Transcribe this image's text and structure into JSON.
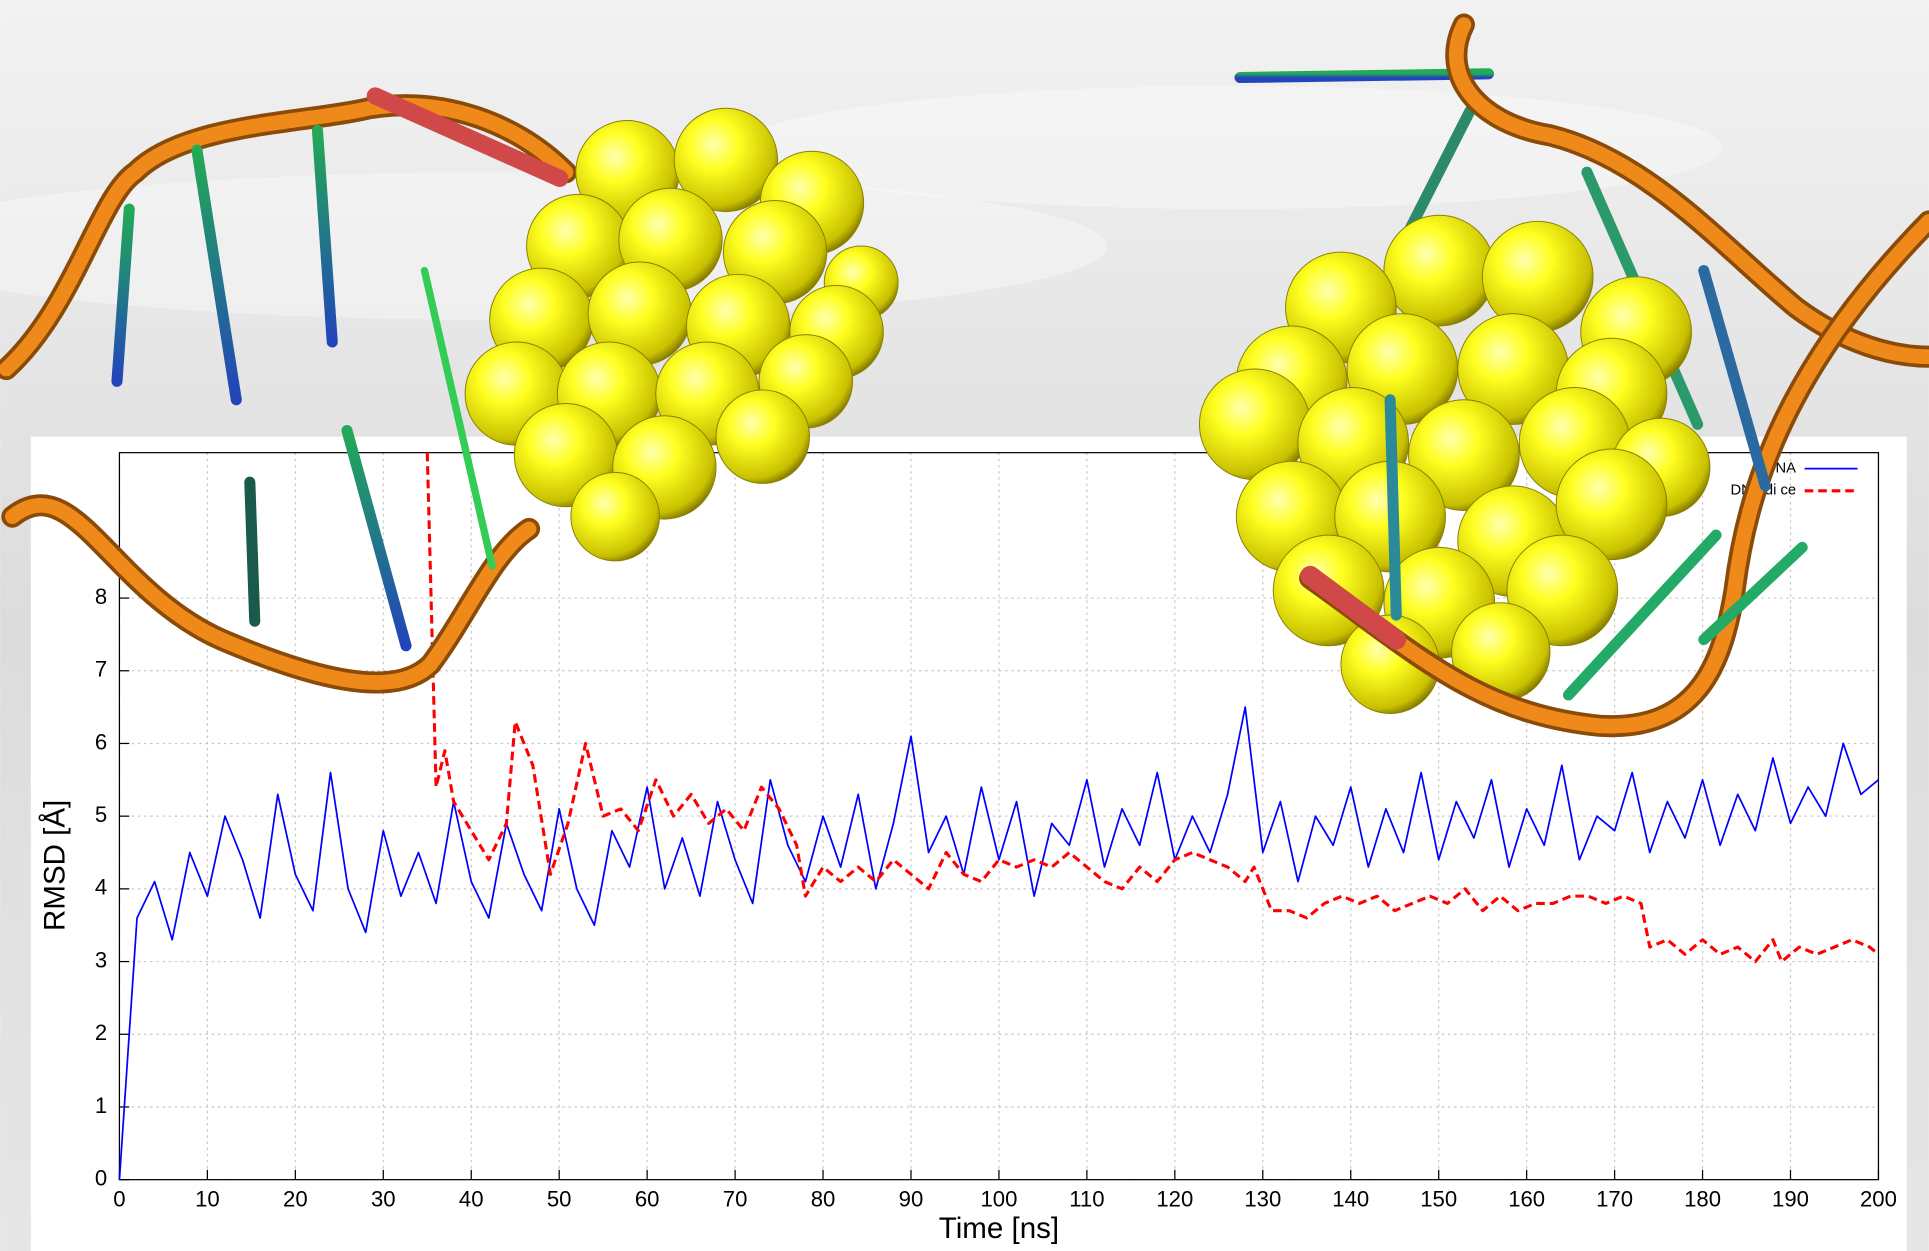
{
  "chart_data": {
    "type": "line",
    "x_label": "Time [ns]",
    "y_label": "RMSD [Å]",
    "xlim": [
      0,
      200
    ],
    "ylim": [
      0,
      10
    ],
    "xticks": [
      0,
      10,
      20,
      30,
      40,
      50,
      60,
      70,
      80,
      90,
      100,
      110,
      120,
      130,
      140,
      150,
      160,
      170,
      180,
      190,
      200
    ],
    "yticks": [
      0,
      1,
      2,
      3,
      4,
      5,
      6,
      7,
      8
    ],
    "grid": true,
    "legend": "upper right",
    "series": [
      {
        "name": "NA",
        "color": "#0000ff",
        "dash": false,
        "x": [
          0,
          2,
          4,
          6,
          8,
          10,
          12,
          14,
          16,
          18,
          20,
          22,
          24,
          26,
          28,
          30,
          32,
          34,
          36,
          38,
          40,
          42,
          44,
          46,
          48,
          50,
          52,
          54,
          56,
          58,
          60,
          62,
          64,
          66,
          68,
          70,
          72,
          74,
          76,
          78,
          80,
          82,
          84,
          86,
          88,
          90,
          92,
          94,
          96,
          98,
          100,
          102,
          104,
          106,
          108,
          110,
          112,
          114,
          116,
          118,
          120,
          122,
          124,
          126,
          128,
          130,
          132,
          134,
          136,
          138,
          140,
          142,
          144,
          146,
          148,
          150,
          152,
          154,
          156,
          158,
          160,
          162,
          164,
          166,
          168,
          170,
          172,
          174,
          176,
          178,
          180,
          182,
          184,
          186,
          188,
          190,
          192,
          194,
          196,
          198,
          200
        ],
        "values": [
          0,
          3.6,
          4.1,
          3.3,
          4.5,
          3.9,
          5.0,
          4.4,
          3.6,
          5.3,
          4.2,
          3.7,
          5.6,
          4.0,
          3.4,
          4.8,
          3.9,
          4.5,
          3.8,
          5.2,
          4.1,
          3.6,
          4.9,
          4.2,
          3.7,
          5.1,
          4.0,
          3.5,
          4.8,
          4.3,
          5.4,
          4.0,
          4.7,
          3.9,
          5.2,
          4.4,
          3.8,
          5.5,
          4.6,
          4.1,
          5.0,
          4.3,
          5.3,
          4.0,
          4.9,
          6.1,
          4.5,
          5.0,
          4.2,
          5.4,
          4.4,
          5.2,
          3.9,
          4.9,
          4.6,
          5.5,
          4.3,
          5.1,
          4.6,
          5.6,
          4.4,
          5.0,
          4.5,
          5.3,
          6.5,
          4.5,
          5.2,
          4.1,
          5.0,
          4.6,
          5.4,
          4.3,
          5.1,
          4.5,
          5.6,
          4.4,
          5.2,
          4.7,
          5.5,
          4.3,
          5.1,
          4.6,
          5.7,
          4.4,
          5.0,
          4.8,
          5.6,
          4.5,
          5.2,
          4.7,
          5.5,
          4.6,
          5.3,
          4.8,
          5.8,
          4.9,
          5.4,
          5.0,
          6.0,
          5.3,
          5.5
        ]
      },
      {
        "name": "DNA di ce",
        "color": "#ff0000",
        "dash": true,
        "x": [
          35,
          36,
          37,
          38,
          40,
          42,
          44,
          45,
          47,
          49,
          51,
          53,
          55,
          57,
          59,
          61,
          63,
          65,
          67,
          69,
          71,
          73,
          75,
          77,
          78,
          80,
          82,
          84,
          86,
          88,
          90,
          92,
          94,
          96,
          98,
          100,
          102,
          104,
          106,
          108,
          110,
          112,
          114,
          116,
          118,
          120,
          122,
          124,
          126,
          128,
          129,
          131,
          133,
          135,
          137,
          139,
          141,
          143,
          145,
          147,
          149,
          151,
          153,
          155,
          157,
          159,
          161,
          163,
          165,
          167,
          169,
          171,
          173,
          174,
          176,
          178,
          180,
          182,
          184,
          186,
          188,
          189,
          191,
          193,
          195,
          197,
          199,
          200
        ],
        "values": [
          10,
          5.4,
          5.9,
          5.2,
          4.8,
          4.4,
          4.9,
          6.3,
          5.7,
          4.2,
          4.9,
          6.0,
          5.0,
          5.1,
          4.8,
          5.5,
          5.0,
          5.3,
          4.9,
          5.1,
          4.8,
          5.4,
          5.1,
          4.6,
          3.9,
          4.3,
          4.1,
          4.3,
          4.1,
          4.4,
          4.2,
          4.0,
          4.5,
          4.2,
          4.1,
          4.4,
          4.3,
          4.4,
          4.3,
          4.5,
          4.3,
          4.1,
          4.0,
          4.3,
          4.1,
          4.4,
          4.5,
          4.4,
          4.3,
          4.1,
          4.3,
          3.7,
          3.7,
          3.6,
          3.8,
          3.9,
          3.8,
          3.9,
          3.7,
          3.8,
          3.9,
          3.8,
          4.0,
          3.7,
          3.9,
          3.7,
          3.8,
          3.8,
          3.9,
          3.9,
          3.8,
          3.9,
          3.8,
          3.2,
          3.3,
          3.1,
          3.3,
          3.1,
          3.2,
          3.0,
          3.3,
          3.0,
          3.2,
          3.1,
          3.2,
          3.3,
          3.2,
          3.1
        ]
      }
    ]
  }
}
